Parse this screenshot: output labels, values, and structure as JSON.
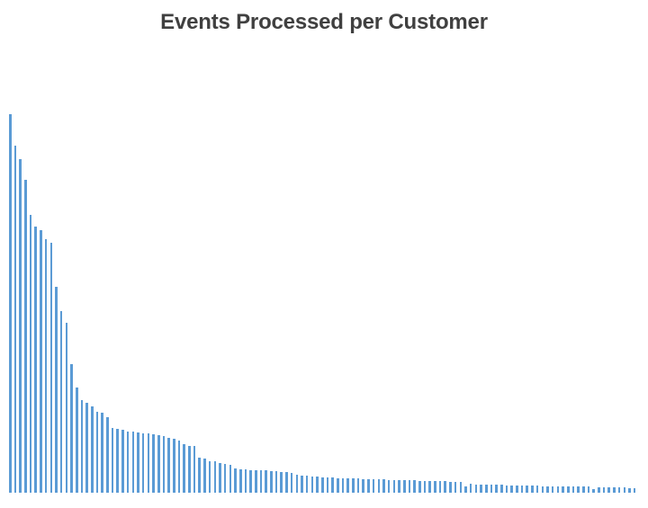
{
  "window": {
    "background_color": "#ffffff"
  },
  "chart_data": {
    "type": "bar",
    "title": "Events Processed per Customer",
    "xlabel": "",
    "ylabel": "",
    "x_axis": "customers (individual bars, no tick labels shown)",
    "y_axis": "events processed (no value axis, ticks or gridlines shown)",
    "grid": false,
    "legend_position": "none",
    "axis_lines_visible": false,
    "title_color": "#404040",
    "bar_color": "#5B9BD5",
    "n_bars": 123,
    "value_unit": "relative bar height in screenshot pixels (no numeric scale visible)",
    "ylim": [
      0,
      421
    ],
    "values": [
      421,
      386,
      371,
      348,
      309,
      296,
      292,
      282,
      278,
      229,
      202,
      189,
      143,
      117,
      103,
      100,
      96,
      90,
      89,
      84,
      72,
      71,
      70,
      68,
      68,
      67,
      66,
      66,
      65,
      64,
      63,
      61,
      60,
      58,
      54,
      52,
      52,
      39,
      38,
      35,
      35,
      33,
      32,
      31,
      27,
      26.5,
      26,
      25.5,
      25.5,
      25,
      25,
      24.5,
      24,
      23.5,
      23,
      22.5,
      20,
      19.5,
      19,
      18.5,
      18,
      17.5,
      17,
      17,
      16.5,
      16.5,
      16,
      16,
      15.8,
      15.5,
      15.3,
      15,
      15,
      14.7,
      14.5,
      14.3,
      14,
      14,
      13.8,
      13.6,
      13.4,
      13.2,
      13,
      13,
      12.8,
      12.6,
      12.4,
      12.2,
      12,
      7,
      9.7,
      9.5,
      9.4,
      9.2,
      9,
      8.8,
      8.6,
      8.4,
      8.2,
      8,
      7.9,
      7.8,
      7.7,
      7.6,
      7.5,
      7.4,
      7.3,
      7.2,
      7.1,
      7,
      6.9,
      6.8,
      6.7,
      6.6,
      4.5,
      6.4,
      6.3,
      6.2,
      6.1,
      6,
      5.8,
      5.5,
      5
    ]
  }
}
